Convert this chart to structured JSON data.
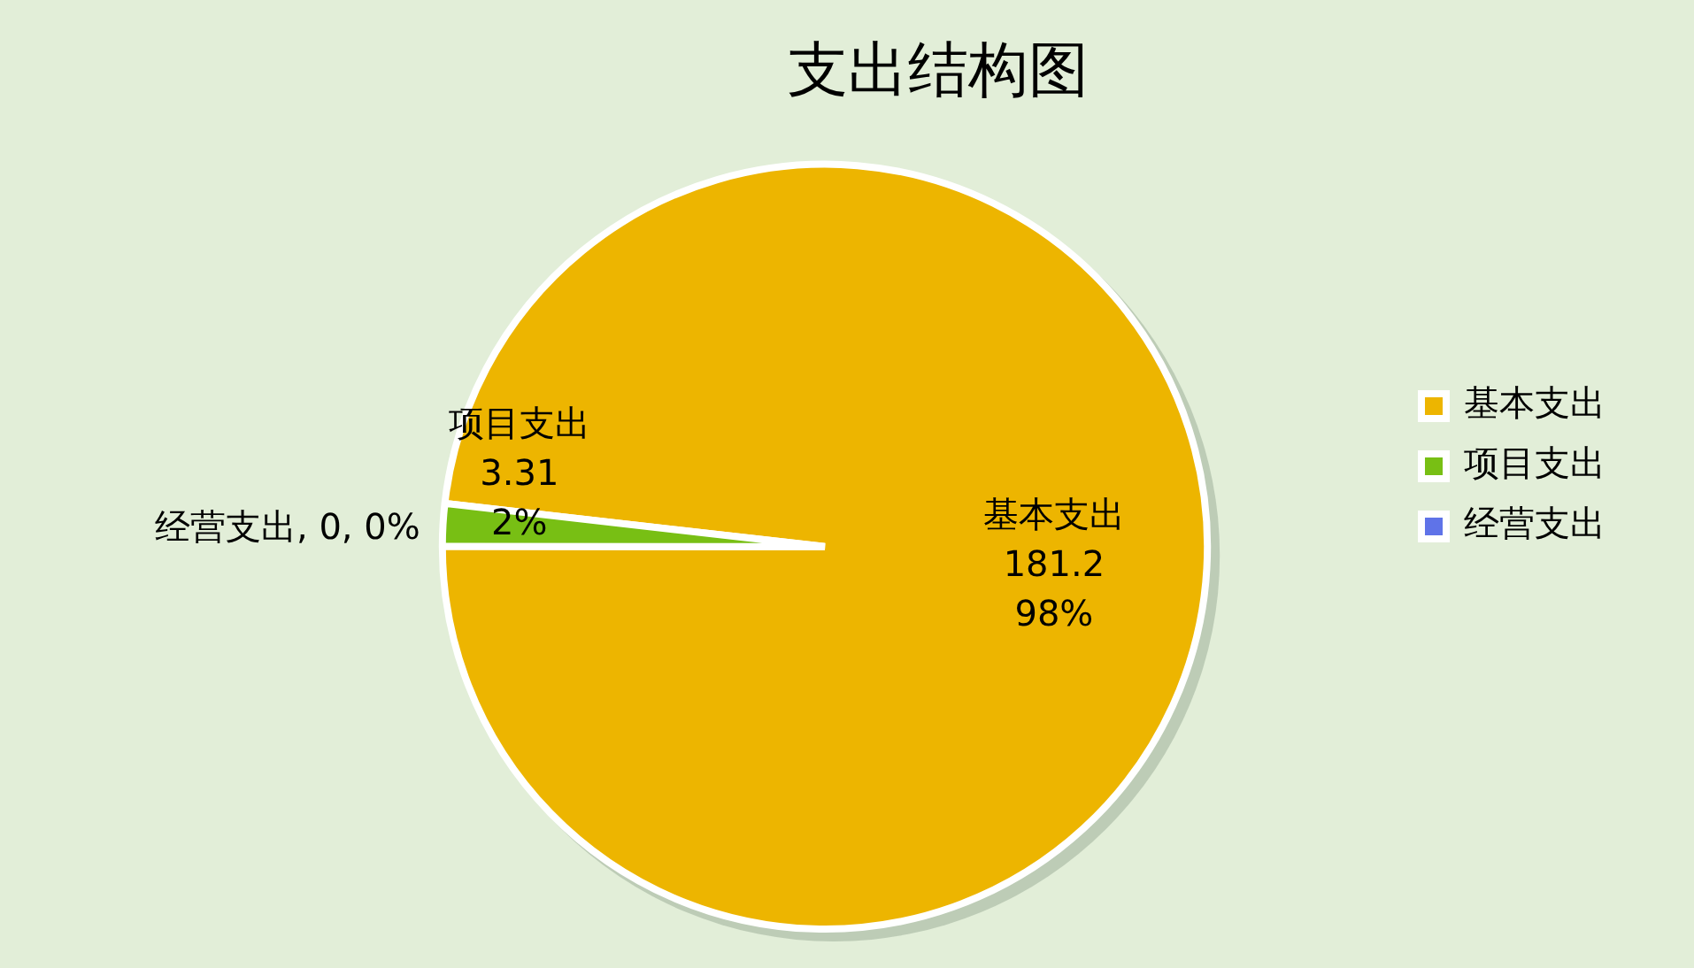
{
  "chart_data": {
    "type": "pie",
    "title": "支出结构图",
    "categories": [
      "基本支出",
      "项目支出",
      "经营支出"
    ],
    "values": [
      181.2,
      3.31,
      0
    ],
    "value_labels": [
      "181.2\n98%",
      "3.31\n2%",
      ", 0, 0%"
    ],
    "colors": [
      "#edb500",
      "#78bf14",
      "#5f73e8"
    ],
    "legend": "right"
  }
}
